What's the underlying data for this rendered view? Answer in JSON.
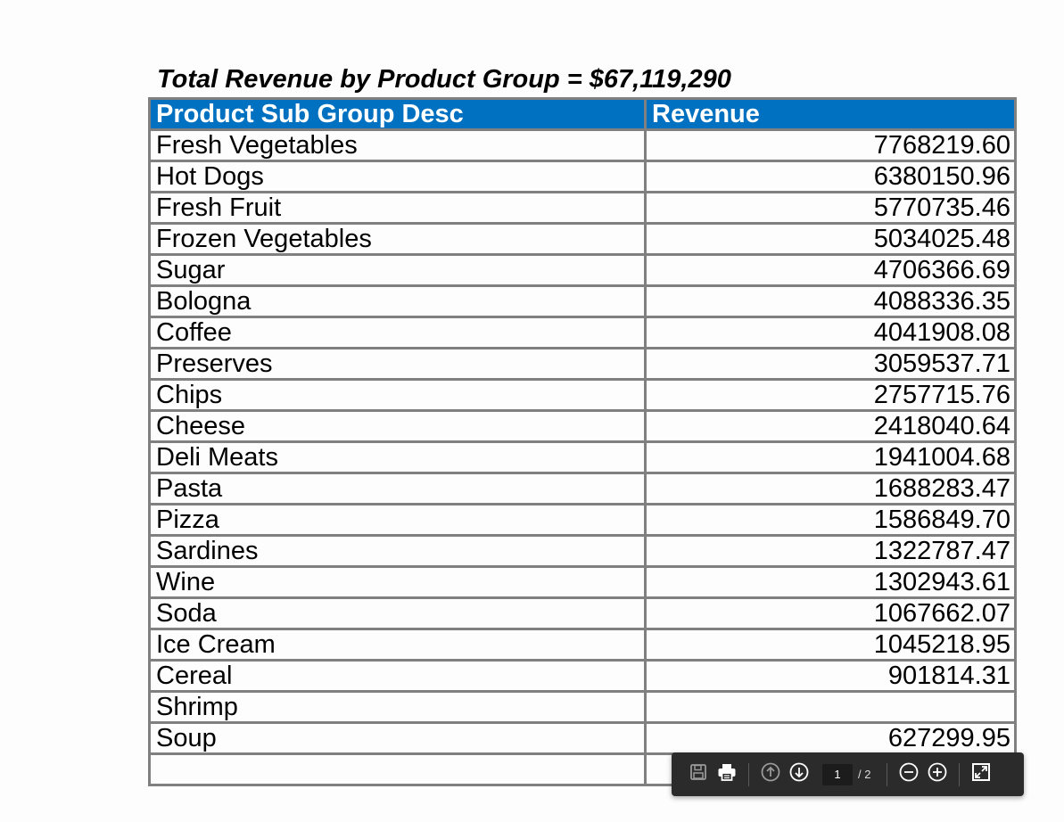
{
  "report": {
    "title": "Total Revenue by Product Group = $67,119,290",
    "columns": [
      "Product Sub Group Desc",
      "Revenue"
    ],
    "rows": [
      {
        "name": "Fresh Vegetables",
        "revenue": "7768219.60"
      },
      {
        "name": "Hot Dogs",
        "revenue": "6380150.96"
      },
      {
        "name": "Fresh Fruit",
        "revenue": "5770735.46"
      },
      {
        "name": "Frozen Vegetables",
        "revenue": "5034025.48"
      },
      {
        "name": "Sugar",
        "revenue": "4706366.69"
      },
      {
        "name": "Bologna",
        "revenue": "4088336.35"
      },
      {
        "name": "Coffee",
        "revenue": "4041908.08"
      },
      {
        "name": "Preserves",
        "revenue": "3059537.71"
      },
      {
        "name": "Chips",
        "revenue": "2757715.76"
      },
      {
        "name": "Cheese",
        "revenue": "2418040.64"
      },
      {
        "name": "Deli Meats",
        "revenue": "1941004.68"
      },
      {
        "name": "Pasta",
        "revenue": "1688283.47"
      },
      {
        "name": "Pizza",
        "revenue": "1586849.70"
      },
      {
        "name": "Sardines",
        "revenue": "1322787.47"
      },
      {
        "name": "Wine",
        "revenue": "1302943.61"
      },
      {
        "name": "Soda",
        "revenue": "1067662.07"
      },
      {
        "name": "Ice Cream",
        "revenue": "1045218.95"
      },
      {
        "name": "Cereal",
        "revenue": "901814.31"
      },
      {
        "name": "Shrimp",
        "revenue": ""
      },
      {
        "name": "Soup",
        "revenue": "627299.95"
      },
      {
        "name": "",
        "revenue": ""
      }
    ]
  },
  "toolbar": {
    "current_page": "1",
    "total_pages": "/ 2",
    "icons": [
      "save-icon",
      "print-icon",
      "previous-page-icon",
      "next-page-icon",
      "zoom-out-icon",
      "zoom-in-icon",
      "fit-page-icon"
    ]
  },
  "colors": {
    "header_bg": "#0070c0",
    "header_text": "#ffffff",
    "grid": "#808080",
    "toolbar_bg": "#2b2b2b"
  }
}
